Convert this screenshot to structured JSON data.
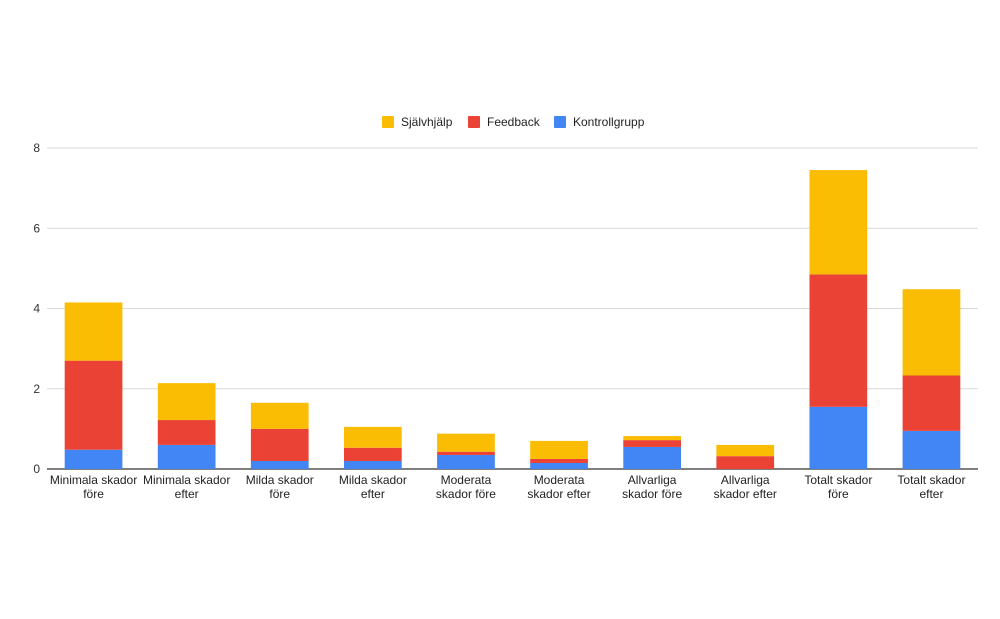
{
  "chart_data": {
    "type": "bar",
    "stacked": true,
    "title": "",
    "xlabel": "",
    "ylabel": "",
    "ylim": [
      0,
      8
    ],
    "yticks": [
      "0",
      "2",
      "4",
      "6",
      "8"
    ],
    "grid": true,
    "legend_position": "top",
    "categories": [
      "Minimala skador före",
      "Minimala skador efter",
      "Milda skador före",
      "Milda skador efter",
      "Moderata skador före",
      "Moderata skador efter",
      "Allvarliga skador före",
      "Allvarliga skador efter",
      "Totalt skador före",
      "Totalt skador efter"
    ],
    "category_lines": [
      [
        "Minimala skador",
        "före"
      ],
      [
        "Minimala skador",
        "efter"
      ],
      [
        "Milda skador",
        "före"
      ],
      [
        "Milda skador",
        "efter"
      ],
      [
        "Moderata",
        "skador före"
      ],
      [
        "Moderata",
        "skador efter"
      ],
      [
        "Allvarliga",
        "skador före"
      ],
      [
        "Allvarliga",
        "skador efter"
      ],
      [
        "Totalt skador",
        "före"
      ],
      [
        "Totalt skador",
        "efter"
      ]
    ],
    "series": [
      {
        "name": "Kontrollgrupp",
        "color": "#4285f4",
        "values": [
          0.48,
          0.6,
          0.2,
          0.2,
          0.35,
          0.15,
          0.55,
          0.0,
          1.55,
          0.95
        ]
      },
      {
        "name": "Feedback",
        "color": "#ea4335",
        "values": [
          2.22,
          0.62,
          0.8,
          0.33,
          0.08,
          0.1,
          0.17,
          0.32,
          3.3,
          1.38
        ]
      },
      {
        "name": "Självhjälp",
        "color": "#fbbc04",
        "values": [
          1.45,
          0.92,
          0.65,
          0.52,
          0.45,
          0.45,
          0.1,
          0.28,
          2.6,
          2.15
        ]
      }
    ],
    "legend_order": [
      "Självhjälp",
      "Feedback",
      "Kontrollgrupp"
    ]
  }
}
